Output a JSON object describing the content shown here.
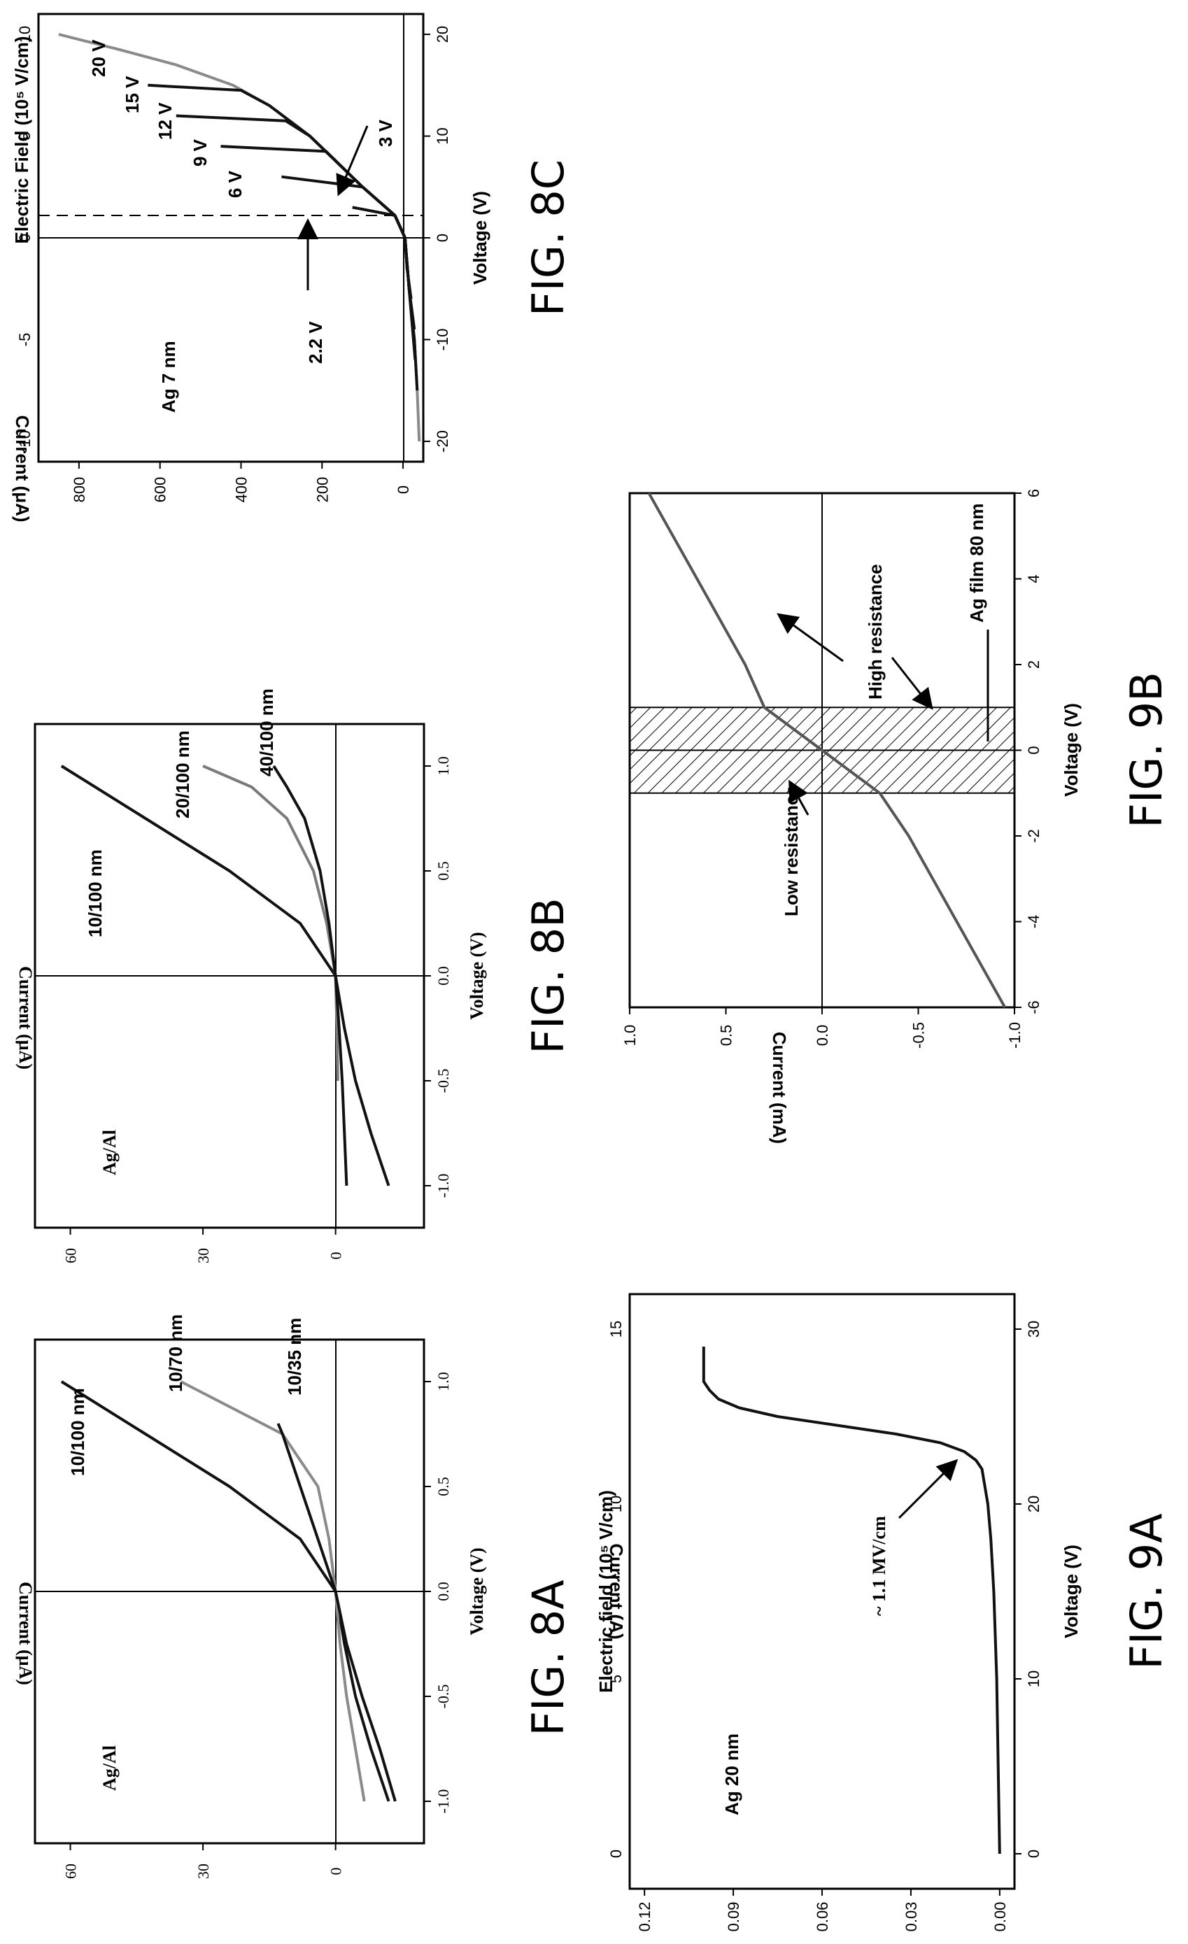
{
  "captions": {
    "fig8a": "FIG. 8A",
    "fig8b": "FIG. 8B",
    "fig8c": "FIG. 8C",
    "fig9a": "FIG. 9A",
    "fig9b": "FIG. 9B"
  },
  "chart_data": [
    {
      "id": "fig8a",
      "type": "line",
      "xlabel": "Voltage (V)",
      "ylabel": "Current (μA)",
      "xlim": [
        -1.2,
        1.2
      ],
      "ylim": [
        -20,
        68
      ],
      "xticks": [
        "-1.0",
        "-0.5",
        "0.0",
        "0.5",
        "1.0"
      ],
      "yticks": [
        "0",
        "30",
        "60"
      ],
      "annotations": [
        "Ag/Al"
      ],
      "series": [
        {
          "name": "10/100 nm",
          "color": "#111111",
          "x": [
            -1.0,
            -0.75,
            -0.5,
            -0.25,
            0.0,
            0.25,
            0.5,
            0.75,
            1.0
          ],
          "y": [
            -12,
            -8,
            -4.5,
            -2,
            0,
            8,
            24,
            43,
            62
          ]
        },
        {
          "name": "10/70 nm",
          "color": "#8a8a8a",
          "x": [
            -1.0,
            -0.75,
            -0.5,
            -0.25,
            0.0,
            0.25,
            0.5,
            0.75,
            1.0
          ],
          "y": [
            -6.5,
            -4.5,
            -2.5,
            -1,
            0,
            1.5,
            4,
            12,
            35
          ]
        },
        {
          "name": "10/35 nm",
          "color": "#111111",
          "x": [
            -1.0,
            -0.75,
            -0.5,
            -0.25,
            0.0,
            0.25,
            0.5,
            0.75,
            0.8
          ],
          "y": [
            -13.5,
            -10,
            -6,
            -2.5,
            0,
            4,
            8,
            12,
            13
          ]
        }
      ]
    },
    {
      "id": "fig8b",
      "type": "line",
      "xlabel": "Voltage (V)",
      "ylabel": "Current (μA)",
      "xlim": [
        -1.2,
        1.2
      ],
      "ylim": [
        -20,
        68
      ],
      "xticks": [
        "-1.0",
        "-0.5",
        "0.0",
        "0.5",
        "1.0"
      ],
      "yticks": [
        "0",
        "30",
        "60"
      ],
      "annotations": [
        "Ag/Al"
      ],
      "series": [
        {
          "name": "10/100 nm",
          "color": "#111111",
          "x": [
            -1.0,
            -0.75,
            -0.5,
            -0.25,
            0.0,
            0.25,
            0.5,
            0.75,
            1.0
          ],
          "y": [
            -12,
            -8,
            -4.5,
            -2,
            0,
            8,
            24,
            43,
            62
          ]
        },
        {
          "name": "20/100 nm",
          "color": "#7a7a7a",
          "x": [
            -0.5,
            -0.25,
            0.0,
            0.25,
            0.5,
            0.75,
            0.9,
            1.0
          ],
          "y": [
            -0.5,
            -0.3,
            0,
            2,
            5,
            11,
            19,
            30
          ]
        },
        {
          "name": "40/100 nm",
          "color": "#111111",
          "x": [
            -1.0,
            -0.75,
            -0.5,
            -0.25,
            0.0,
            0.25,
            0.5,
            0.75,
            0.9,
            1.0
          ],
          "y": [
            -2.5,
            -2,
            -1.5,
            -0.8,
            0,
            1.5,
            3.5,
            7,
            11,
            14
          ]
        }
      ]
    },
    {
      "id": "fig8c",
      "type": "line",
      "xlabel": "Voltage (V)",
      "ylabel": "Current (μA)",
      "y2label": "Electric Field (10⁵ V/cm)",
      "xlim": [
        -22,
        22
      ],
      "ylim": [
        -50,
        900
      ],
      "xticks": [
        "-20",
        "-10",
        "0",
        "10",
        "20"
      ],
      "yticks": [
        "0",
        "200",
        "400",
        "600",
        "800"
      ],
      "x2ticks": [
        "-10",
        "-5",
        "0",
        "5",
        "10"
      ],
      "annotations": [
        "Ag 7 nm",
        "2.2 V",
        "3 V",
        "6 V",
        "9 V",
        "12 V",
        "15 V",
        "20 V"
      ],
      "series": [
        {
          "name": "20 V",
          "color": "#8a8a8a",
          "x": [
            -20,
            -15,
            -10,
            -5,
            0,
            2.2,
            5,
            10,
            13,
            15,
            17,
            18.5,
            19.5,
            20
          ],
          "y": [
            -40,
            -35,
            -28,
            -15,
            -5,
            20,
            100,
            230,
            330,
            420,
            560,
            700,
            800,
            850
          ]
        },
        {
          "name": "15 V",
          "color": "#111111",
          "x": [
            -15,
            -10,
            -5,
            0,
            2.2,
            5,
            10,
            13,
            14.5,
            15
          ],
          "y": [
            -35,
            -28,
            -15,
            -5,
            20,
            100,
            230,
            330,
            400,
            630
          ]
        },
        {
          "name": "12 V",
          "color": "#111111",
          "x": [
            -12,
            -5,
            0,
            2.2,
            5,
            10,
            11.5,
            12
          ],
          "y": [
            -30,
            -15,
            -5,
            20,
            100,
            230,
            290,
            560
          ]
        },
        {
          "name": "9 V",
          "color": "#111111",
          "x": [
            -9,
            -5,
            0,
            2.2,
            5,
            8.5,
            9
          ],
          "y": [
            -28,
            -15,
            -5,
            20,
            100,
            190,
            450
          ]
        },
        {
          "name": "6 V",
          "color": "#111111",
          "x": [
            -6,
            -3,
            0,
            2.2,
            5,
            6
          ],
          "y": [
            -20,
            -10,
            -5,
            20,
            100,
            300
          ]
        },
        {
          "name": "3 V",
          "color": "#111111",
          "x": [
            -3,
            0,
            2.2,
            3
          ],
          "y": [
            -10,
            -5,
            20,
            125
          ]
        }
      ]
    },
    {
      "id": "fig9a",
      "type": "line",
      "xlabel": "Voltage (V)",
      "ylabel": "Current (A)",
      "x2label": "Electric field (10⁵ V/cm)",
      "xlim": [
        -2,
        32
      ],
      "ylim": [
        -0.005,
        0.125
      ],
      "xticks": [
        "0",
        "10",
        "20",
        "30"
      ],
      "yticks": [
        "0.00",
        "0.03",
        "0.06",
        "0.09",
        "0.12"
      ],
      "x2ticks": [
        "0",
        "5",
        "10",
        "15"
      ],
      "annotations": [
        "Ag 20 nm",
        "~ 1.1 MV/cm"
      ],
      "series": [
        {
          "name": "Ag 20 nm",
          "color": "#111111",
          "x": [
            0,
            5,
            10,
            15,
            18,
            20,
            22,
            22.5,
            23,
            23.5,
            24,
            24.5,
            25,
            25.5,
            26,
            26.5,
            27,
            29
          ],
          "y": [
            0.0,
            0.0005,
            0.001,
            0.002,
            0.003,
            0.004,
            0.006,
            0.008,
            0.012,
            0.02,
            0.035,
            0.055,
            0.075,
            0.088,
            0.095,
            0.098,
            0.1,
            0.1
          ]
        }
      ]
    },
    {
      "id": "fig9b",
      "type": "line",
      "xlabel": "Voltage (V)",
      "ylabel": "Current (mA)",
      "xlim": [
        -6,
        6
      ],
      "ylim": [
        -1.0,
        1.0
      ],
      "xticks": [
        "-6",
        "-4",
        "-2",
        "0",
        "2",
        "4",
        "6"
      ],
      "yticks": [
        "-1.0",
        "-0.5",
        "0.0",
        "0.5",
        "1.0"
      ],
      "annotations": [
        "Low resistance",
        "High resistance",
        "Ag film 80 nm"
      ],
      "shaded_region_x": [
        -1.0,
        1.0
      ],
      "series": [
        {
          "name": "Ag film 80 nm",
          "color": "#555555",
          "x": [
            -6,
            -4,
            -2,
            -1,
            0,
            1,
            2,
            4,
            6
          ],
          "y": [
            -0.95,
            -0.7,
            -0.45,
            -0.3,
            0.0,
            0.3,
            0.4,
            0.65,
            0.9
          ]
        }
      ]
    }
  ]
}
